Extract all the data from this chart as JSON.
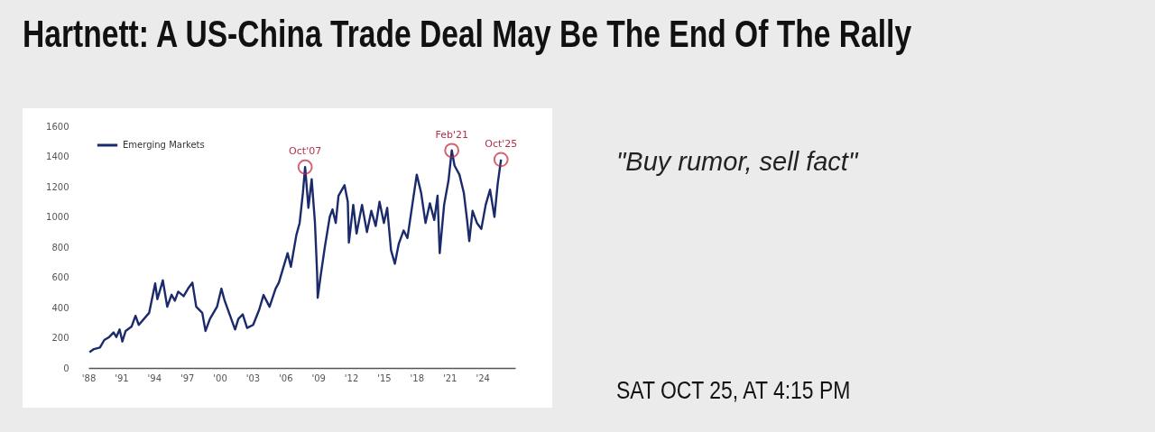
{
  "chart_data": {
    "type": "line",
    "title": "Hartnett: A US-China Trade Deal May Be The End Of The Rally",
    "series": [
      {
        "name": "Emerging Markets",
        "color": "#1b2a6b",
        "x": [
          1988.1,
          1988.5,
          1989.05,
          1989.45,
          1989.9,
          1990.3,
          1990.55,
          1990.85,
          1991.1,
          1991.4,
          1991.95,
          1992.3,
          1992.6,
          1993.55,
          1994.1,
          1994.3,
          1994.8,
          1995.2,
          1995.6,
          1995.9,
          1996.2,
          1996.7,
          1997.1,
          1997.5,
          1997.85,
          1998.4,
          1998.7,
          1999.1,
          1999.75,
          2000.15,
          2000.45,
          2000.85,
          2001.4,
          2001.7,
          2002.1,
          2002.5,
          2003.05,
          2003.6,
          2004.0,
          2004.55,
          2005.1,
          2005.4,
          2006.2,
          2006.5,
          2007.0,
          2007.3,
          2007.6,
          2007.8,
          2008.1,
          2008.4,
          2008.7,
          2008.9,
          2008.95,
          2009.2,
          2009.6,
          2010.05,
          2010.3,
          2010.6,
          2010.85,
          2011.4,
          2011.7,
          2011.8,
          2012.2,
          2012.5,
          2013.0,
          2013.45,
          2013.85,
          2014.25,
          2014.6,
          2015.0,
          2015.3,
          2015.65,
          2016.0,
          2016.35,
          2016.8,
          2017.15,
          2018.0,
          2018.4,
          2018.8,
          2019.2,
          2019.6,
          2019.9,
          2020.1,
          2020.5,
          2020.9,
          2021.2,
          2021.45,
          2021.9,
          2022.3,
          2022.6,
          2022.8,
          2023.1,
          2023.5,
          2023.9,
          2024.3,
          2024.7,
          2025.1,
          2025.4,
          2025.7
        ],
        "values": [
          105,
          125,
          135,
          185,
          205,
          235,
          205,
          255,
          175,
          245,
          275,
          345,
          285,
          365,
          560,
          455,
          580,
          405,
          485,
          445,
          505,
          475,
          525,
          565,
          405,
          365,
          245,
          325,
          405,
          525,
          445,
          365,
          255,
          325,
          355,
          265,
          285,
          385,
          483,
          405,
          525,
          565,
          760,
          670,
          880,
          960,
          1160,
          1330,
          1060,
          1250,
          960,
          620,
          465,
          600,
          800,
          1000,
          1050,
          960,
          1140,
          1210,
          1100,
          830,
          1080,
          890,
          1080,
          900,
          1040,
          940,
          1100,
          960,
          1060,
          780,
          690,
          820,
          910,
          860,
          1280,
          1160,
          960,
          1090,
          980,
          1140,
          760,
          1080,
          1240,
          1440,
          1340,
          1280,
          1160,
          980,
          840,
          1040,
          960,
          920,
          1080,
          1180,
          1000,
          1220,
          1380
        ]
      }
    ],
    "xlim": [
      1988,
      2027
    ],
    "xticks": [
      {
        "value": 1988,
        "label": "'88"
      },
      {
        "value": 1991,
        "label": "'91"
      },
      {
        "value": 1994,
        "label": "'94"
      },
      {
        "value": 1997,
        "label": "'97"
      },
      {
        "value": 2000,
        "label": "'00"
      },
      {
        "value": 2003,
        "label": "'03"
      },
      {
        "value": 2006,
        "label": "'06"
      },
      {
        "value": 2009,
        "label": "'09"
      },
      {
        "value": 2012,
        "label": "'12"
      },
      {
        "value": 2015,
        "label": "'15"
      },
      {
        "value": 2018,
        "label": "'18"
      },
      {
        "value": 2021,
        "label": "'21"
      },
      {
        "value": 2024,
        "label": "'24"
      }
    ],
    "ylim": [
      0,
      1600
    ],
    "yticks": [
      0,
      200,
      400,
      600,
      800,
      1000,
      1200,
      1400,
      1600
    ],
    "grid": false,
    "legend": "top left",
    "annotations": [
      {
        "text": "Oct'07",
        "x": 2007.8,
        "y": 1330
      },
      {
        "text": "Feb'21",
        "x": 2021.2,
        "y": 1440
      },
      {
        "text": "Oct'25",
        "x": 2025.7,
        "y": 1380
      },
      "\"Buy rumor, sell fact\"",
      "SAT OCT 25, AT 4:15 PM"
    ]
  }
}
